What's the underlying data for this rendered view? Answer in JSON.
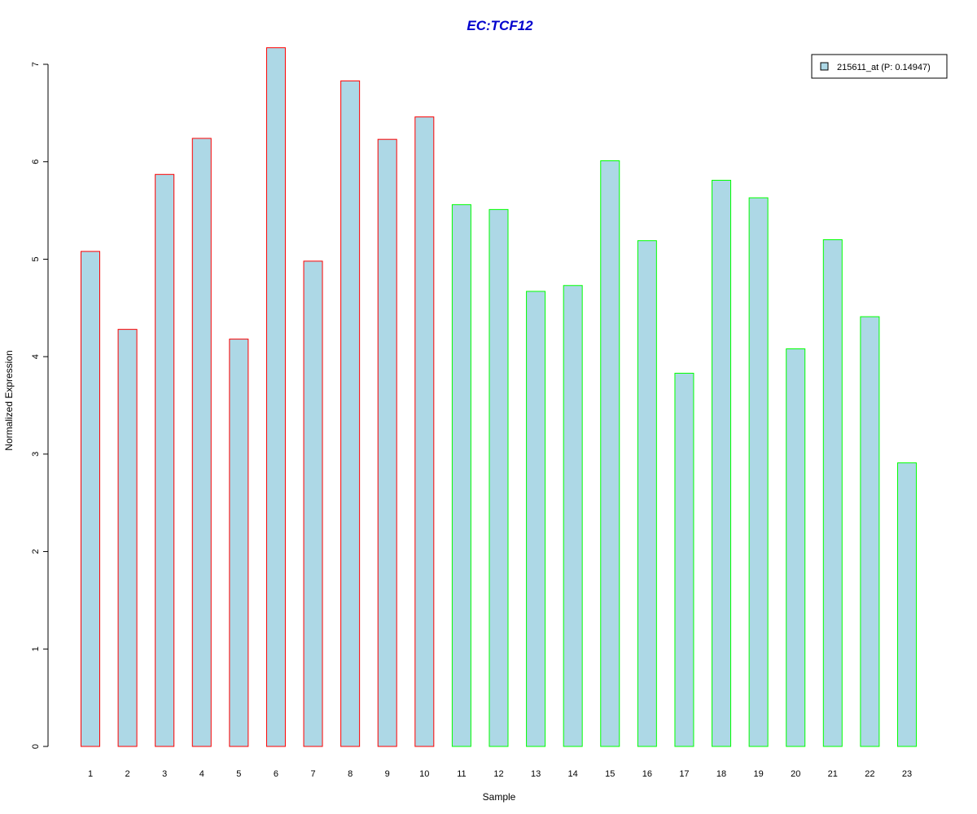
{
  "chart_data": {
    "type": "bar",
    "title": "EC:TCF12",
    "xlabel": "Sample",
    "ylabel": "Normalized Expression",
    "categories": [
      "1",
      "2",
      "3",
      "4",
      "5",
      "6",
      "7",
      "8",
      "9",
      "10",
      "11",
      "12",
      "13",
      "14",
      "15",
      "16",
      "17",
      "18",
      "19",
      "20",
      "21",
      "22",
      "23"
    ],
    "values": [
      5.08,
      4.28,
      5.87,
      6.24,
      4.18,
      7.17,
      4.98,
      6.83,
      6.23,
      6.46,
      5.56,
      5.51,
      4.67,
      4.73,
      6.01,
      5.19,
      3.83,
      5.81,
      5.63,
      4.08,
      5.2,
      4.41,
      2.91
    ],
    "ylim": [
      0,
      7
    ],
    "yticks": [
      "0",
      "1",
      "2",
      "3",
      "4",
      "5",
      "6",
      "7"
    ],
    "grid": false,
    "legend_position": "top-right",
    "legend": {
      "label": "215611_at (P: 0.14947)",
      "fill_color": "#add8e6"
    },
    "colors": {
      "title": "#0000cd",
      "bar_fill": "#add8e6",
      "group1_border": "#ff0000",
      "group2_border": "#00ff00"
    },
    "group1_count": 10
  }
}
